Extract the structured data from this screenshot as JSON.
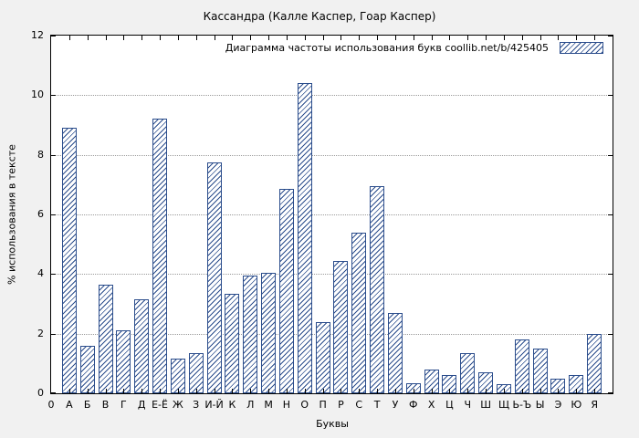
{
  "colors": {
    "accent": "#2b4d8c",
    "background": "#f1f1f1",
    "plot_background": "#ffffff"
  },
  "chart_data": {
    "type": "bar",
    "title": "Кассандра (Калле Каспер, Гоар Каспер)",
    "legend_label": "Диаграмма частоты использования букв  coollib.net/b/425405",
    "xlabel": "Буквы",
    "ylabel": "% использования в тексте",
    "ylim": [
      0,
      12
    ],
    "yticks": [
      0,
      2,
      4,
      6,
      8,
      10,
      12
    ],
    "origin_label": "0",
    "grid": true,
    "legend_position": "top-right",
    "categories": [
      "А",
      "Б",
      "В",
      "Г",
      "Д",
      "Е-Ё",
      "Ж",
      "З",
      "И-Й",
      "К",
      "Л",
      "М",
      "Н",
      "О",
      "П",
      "Р",
      "С",
      "Т",
      "У",
      "Ф",
      "Х",
      "Ц",
      "Ч",
      "Ш",
      "Щ",
      "Ь-Ъ",
      "Ы",
      "Э",
      "Ю",
      "Я"
    ],
    "values": [
      8.9,
      1.6,
      3.65,
      2.1,
      3.15,
      9.2,
      1.15,
      1.35,
      7.75,
      3.35,
      3.95,
      4.05,
      6.85,
      10.4,
      2.4,
      4.45,
      5.4,
      6.95,
      2.7,
      0.35,
      0.8,
      0.6,
      1.35,
      0.7,
      0.3,
      1.8,
      1.5,
      0.5,
      0.6,
      2.0
    ]
  }
}
